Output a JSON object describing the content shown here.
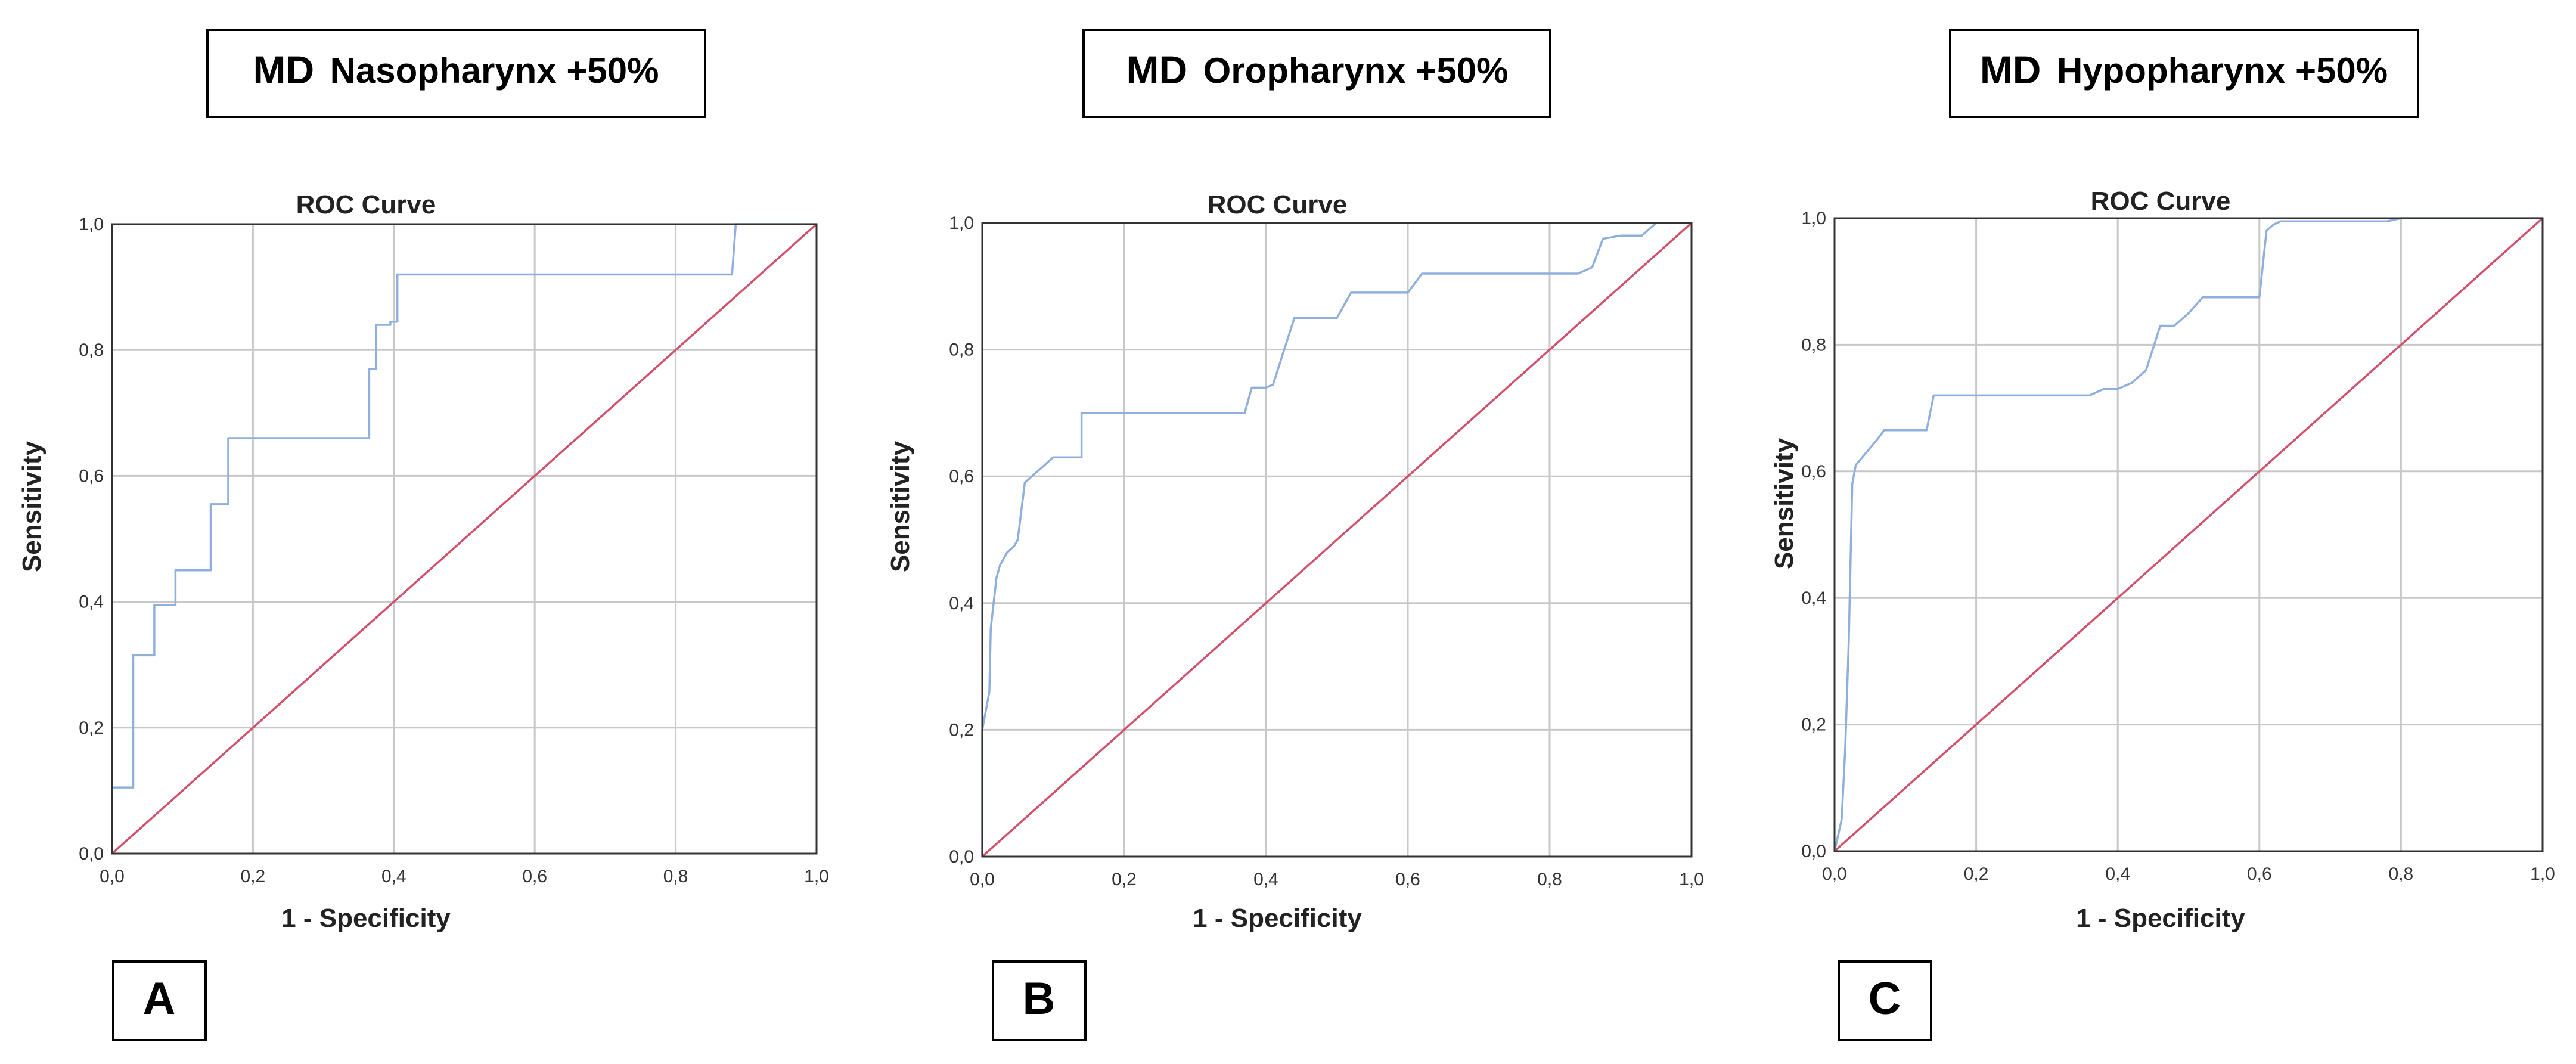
{
  "colors": {
    "roc": "#8fb0dc",
    "reference": "#d0516b"
  },
  "chart_data": [
    {
      "type": "line",
      "heading": {
        "measure": "MD",
        "region": "Nasopharynx +50%"
      },
      "panel_label": "A",
      "title": "ROC Curve",
      "xlabel": "1 - Specificity",
      "ylabel": "Sensitivity",
      "xlim": [
        0,
        1
      ],
      "ylim": [
        0,
        1
      ],
      "xticks": [
        "0,0",
        "0,2",
        "0,4",
        "0,6",
        "0,8",
        "1,0"
      ],
      "yticks": [
        "0,0",
        "0,2",
        "0,4",
        "0,6",
        "0,8",
        "1,0"
      ],
      "grid": true,
      "series": [
        {
          "name": "ROC",
          "x": [
            0,
            0,
            0.03,
            0.03,
            0.06,
            0.06,
            0.09,
            0.09,
            0.12,
            0.12,
            0.14,
            0.14,
            0.165,
            0.165,
            0.365,
            0.365,
            0.375,
            0.375,
            0.395,
            0.395,
            0.405,
            0.405,
            0.88,
            0.885,
            0.885,
            1.0
          ],
          "y": [
            0,
            0.105,
            0.105,
            0.315,
            0.315,
            0.395,
            0.395,
            0.45,
            0.45,
            0.45,
            0.45,
            0.555,
            0.555,
            0.66,
            0.66,
            0.77,
            0.77,
            0.84,
            0.84,
            0.845,
            0.845,
            0.92,
            0.92,
            0.995,
            1.0,
            1.0
          ]
        },
        {
          "name": "Reference",
          "x": [
            0,
            1
          ],
          "y": [
            0,
            1
          ]
        }
      ]
    },
    {
      "type": "line",
      "heading": {
        "measure": "MD",
        "region": "Oropharynx +50%"
      },
      "panel_label": "B",
      "title": "ROC Curve",
      "xlabel": "1 - Specificity",
      "ylabel": "Sensitivity",
      "xlim": [
        0,
        1
      ],
      "ylim": [
        0,
        1
      ],
      "xticks": [
        "0,0",
        "0,2",
        "0,4",
        "0,6",
        "0,8",
        "1,0"
      ],
      "yticks": [
        "0,0",
        "0,2",
        "0,4",
        "0,6",
        "0,8",
        "1,0"
      ],
      "grid": true,
      "series": [
        {
          "name": "ROC",
          "x": [
            0,
            0,
            0.01,
            0.012,
            0.02,
            0.025,
            0.035,
            0.045,
            0.05,
            0.06,
            0.07,
            0.1,
            0.14,
            0.14,
            0.37,
            0.38,
            0.4,
            0.41,
            0.42,
            0.44,
            0.45,
            0.48,
            0.5,
            0.52,
            0.6,
            0.62,
            0.84,
            0.86,
            0.875,
            0.9,
            0.93,
            0.95,
            1.0
          ],
          "y": [
            0,
            0.2,
            0.26,
            0.36,
            0.44,
            0.46,
            0.48,
            0.49,
            0.5,
            0.59,
            0.6,
            0.63,
            0.63,
            0.7,
            0.7,
            0.74,
            0.74,
            0.745,
            0.78,
            0.85,
            0.85,
            0.85,
            0.85,
            0.89,
            0.89,
            0.92,
            0.92,
            0.93,
            0.975,
            0.98,
            0.98,
            1.0,
            1.0
          ]
        },
        {
          "name": "Reference",
          "x": [
            0,
            1
          ],
          "y": [
            0,
            1
          ]
        }
      ]
    },
    {
      "type": "line",
      "heading": {
        "measure": "MD",
        "region": "Hypopharynx +50%"
      },
      "panel_label": "C",
      "title": "ROC Curve",
      "xlabel": "1 - Specificity",
      "ylabel": "Sensitivity",
      "xlim": [
        0,
        1
      ],
      "ylim": [
        0,
        1
      ],
      "xticks": [
        "0,0",
        "0,2",
        "0,4",
        "0,6",
        "0,8",
        "1,0"
      ],
      "yticks": [
        "0,0",
        "0,2",
        "0,4",
        "0,6",
        "0,8",
        "1,0"
      ],
      "grid": true,
      "series": [
        {
          "name": "ROC",
          "x": [
            0,
            0.01,
            0.015,
            0.02,
            0.025,
            0.03,
            0.06,
            0.07,
            0.13,
            0.14,
            0.36,
            0.38,
            0.4,
            0.42,
            0.44,
            0.46,
            0.47,
            0.48,
            0.5,
            0.52,
            0.6,
            0.61,
            0.62,
            0.63,
            0.78,
            0.8,
            1.0
          ],
          "y": [
            0,
            0.05,
            0.16,
            0.33,
            0.58,
            0.61,
            0.65,
            0.665,
            0.665,
            0.72,
            0.72,
            0.73,
            0.73,
            0.74,
            0.76,
            0.83,
            0.83,
            0.83,
            0.85,
            0.875,
            0.875,
            0.98,
            0.99,
            0.995,
            0.995,
            1.0,
            1.0
          ]
        },
        {
          "name": "Reference",
          "x": [
            0,
            1
          ],
          "y": [
            0,
            1
          ]
        }
      ]
    }
  ]
}
